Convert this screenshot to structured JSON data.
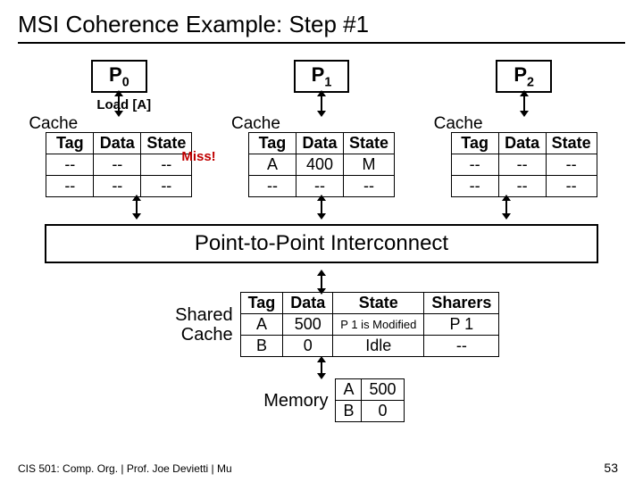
{
  "title": "MSI Coherence Example: Step #1",
  "processors": [
    {
      "name": "P",
      "sub": "0",
      "load": "Load [A]",
      "cache_headers": [
        "Tag",
        "Data",
        "State"
      ],
      "cache_rows": [
        [
          "--",
          "--",
          "--"
        ],
        [
          "--",
          "--",
          "--"
        ]
      ],
      "miss": "Miss!"
    },
    {
      "name": "P",
      "sub": "1",
      "cache_headers": [
        "Tag",
        "Data",
        "State"
      ],
      "cache_rows": [
        [
          "A",
          "400",
          "M"
        ],
        [
          "--",
          "--",
          "--"
        ]
      ]
    },
    {
      "name": "P",
      "sub": "2",
      "cache_headers": [
        "Tag",
        "Data",
        "State"
      ],
      "cache_rows": [
        [
          "--",
          "--",
          "--"
        ],
        [
          "--",
          "--",
          "--"
        ]
      ]
    }
  ],
  "cache_label": "Cache",
  "interconnect": "Point-to-Point Interconnect",
  "shared_label": "Shared Cache",
  "shared_headers": [
    "Tag",
    "Data",
    "State",
    "Sharers"
  ],
  "shared_rows": [
    [
      "A",
      "500",
      "P 1 is Modified",
      "P 1"
    ],
    [
      "B",
      "0",
      "Idle",
      "--"
    ]
  ],
  "memory_label": "Memory",
  "memory_rows": [
    [
      "A",
      "500"
    ],
    [
      "B",
      "0"
    ]
  ],
  "footer": "CIS 501: Comp. Org. | Prof. Joe Devietti | Mu",
  "page": "53"
}
